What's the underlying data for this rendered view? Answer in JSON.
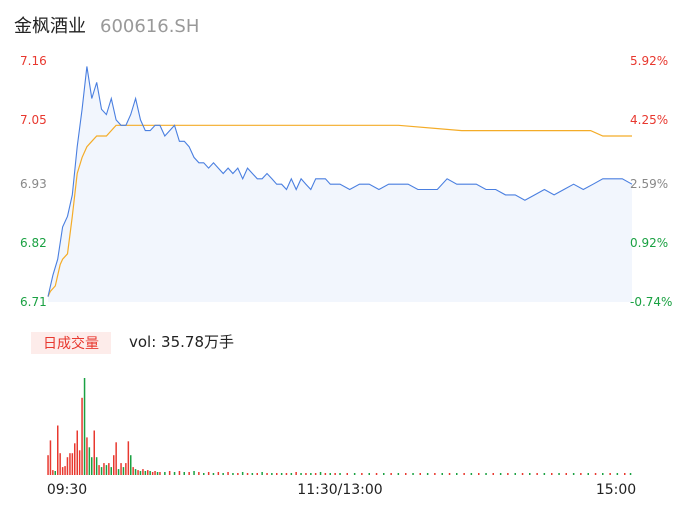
{
  "header": {
    "name": "金枫酒业",
    "code": "600616.SH"
  },
  "volume": {
    "badge": "日成交量",
    "label": "vol: 35.78万手"
  },
  "colors": {
    "price": "#4a7fe0",
    "avg": "#f4ac28",
    "up": "#e8382f",
    "down": "#1aa142",
    "neutral": "#888888"
  },
  "chart_data": [
    {
      "type": "line",
      "title": "",
      "ylim": [
        6.71,
        7.16
      ],
      "y_ticks_left": [
        {
          "label": "7.16",
          "value": 7.16,
          "color": "#e8382f"
        },
        {
          "label": "7.05",
          "value": 7.05,
          "color": "#e8382f"
        },
        {
          "label": "6.93",
          "value": 6.93,
          "color": "#888888"
        },
        {
          "label": "6.82",
          "value": 6.82,
          "color": "#1aa142"
        },
        {
          "label": "6.71",
          "value": 6.71,
          "color": "#1aa142"
        }
      ],
      "y_ticks_right": [
        {
          "label": "5.92%",
          "value": 7.16,
          "color": "#e8382f"
        },
        {
          "label": "4.25%",
          "value": 7.05,
          "color": "#e8382f"
        },
        {
          "label": "2.59%",
          "value": 6.93,
          "color": "#888888"
        },
        {
          "label": "0.92%",
          "value": 6.82,
          "color": "#1aa142"
        },
        {
          "label": "-0.74%",
          "value": 6.71,
          "color": "#1aa142"
        }
      ],
      "x_ticks": [
        "09:30",
        "11:30/13:00",
        "15:00"
      ],
      "series": [
        {
          "key": "price",
          "x": [
            0,
            2,
            4,
            6,
            8,
            10,
            12,
            14,
            16,
            18,
            20,
            22,
            24,
            26,
            28,
            30,
            32,
            34,
            36,
            38,
            40,
            42,
            44,
            46,
            48,
            50,
            52,
            54,
            56,
            58,
            60,
            62,
            64,
            66,
            68,
            70,
            72,
            74,
            76,
            78,
            80,
            82,
            84,
            86,
            88,
            90,
            92,
            94,
            96,
            98,
            100,
            102,
            104,
            106,
            108,
            110,
            112,
            114,
            116,
            118,
            120,
            124,
            128,
            132,
            136,
            140,
            144,
            148,
            152,
            156,
            160,
            164,
            168,
            172,
            176,
            180,
            184,
            188,
            192,
            196,
            200,
            204,
            208,
            212,
            216,
            220,
            224,
            228,
            232,
            236,
            240
          ],
          "values": [
            6.72,
            6.76,
            6.79,
            6.85,
            6.87,
            6.91,
            7.0,
            7.07,
            7.15,
            7.09,
            7.12,
            7.07,
            7.06,
            7.09,
            7.05,
            7.04,
            7.04,
            7.06,
            7.09,
            7.05,
            7.03,
            7.03,
            7.04,
            7.04,
            7.02,
            7.03,
            7.04,
            7.01,
            7.01,
            7.0,
            6.98,
            6.97,
            6.97,
            6.96,
            6.97,
            6.96,
            6.95,
            6.96,
            6.95,
            6.96,
            6.94,
            6.96,
            6.95,
            6.94,
            6.94,
            6.95,
            6.94,
            6.93,
            6.93,
            6.92,
            6.94,
            6.92,
            6.94,
            6.93,
            6.92,
            6.94,
            6.94,
            6.94,
            6.93,
            6.93,
            6.93,
            6.92,
            6.93,
            6.93,
            6.92,
            6.93,
            6.93,
            6.93,
            6.92,
            6.92,
            6.92,
            6.94,
            6.93,
            6.93,
            6.93,
            6.92,
            6.92,
            6.91,
            6.91,
            6.9,
            6.91,
            6.92,
            6.91,
            6.92,
            6.93,
            6.92,
            6.93,
            6.94,
            6.94,
            6.94,
            6.93
          ]
        },
        {
          "key": "avg",
          "x": [
            0,
            1,
            3,
            5,
            6,
            8,
            10,
            12,
            14,
            16,
            18,
            20,
            22,
            24,
            26,
            28,
            30,
            32,
            36,
            40,
            44,
            46,
            52,
            60,
            80,
            100,
            120,
            144,
            170,
            200,
            223,
            228,
            240
          ],
          "values": [
            6.72,
            6.73,
            6.74,
            6.78,
            6.79,
            6.8,
            6.87,
            6.95,
            6.98,
            7.0,
            7.01,
            7.02,
            7.02,
            7.02,
            7.03,
            7.04,
            7.04,
            7.04,
            7.04,
            7.04,
            7.04,
            7.04,
            7.04,
            7.04,
            7.04,
            7.04,
            7.04,
            7.04,
            7.03,
            7.03,
            7.03,
            7.02,
            7.02
          ]
        }
      ]
    },
    {
      "type": "bar",
      "title": "",
      "x": [
        0,
        1,
        2,
        3,
        4,
        5,
        6,
        7,
        8,
        9,
        10,
        11,
        12,
        13,
        14,
        15,
        16,
        17,
        18,
        19,
        20,
        21,
        22,
        23,
        24,
        25,
        26,
        27,
        28,
        29,
        30,
        31,
        32,
        33,
        34,
        35,
        36,
        37,
        38,
        39,
        40,
        41,
        42,
        43,
        44,
        45,
        46,
        48,
        50,
        52,
        54,
        56,
        58,
        60,
        62,
        64,
        66,
        68,
        70,
        72,
        74,
        76,
        78,
        80,
        82,
        84,
        86,
        88,
        90,
        92,
        94,
        96,
        98,
        100,
        102,
        104,
        106,
        108,
        110,
        112,
        114,
        116,
        118,
        120,
        123,
        126,
        129,
        132,
        135,
        138,
        141,
        144,
        147,
        150,
        153,
        156,
        159,
        162,
        165,
        168,
        171,
        174,
        177,
        180,
        183,
        186,
        189,
        192,
        195,
        198,
        201,
        204,
        207,
        210,
        213,
        216,
        219,
        222,
        225,
        228,
        231,
        234,
        237,
        240
      ],
      "values": [
        20,
        35,
        5,
        4,
        50,
        22,
        8,
        9,
        18,
        22,
        22,
        32,
        45,
        25,
        78,
        98,
        38,
        28,
        18,
        45,
        18,
        10,
        8,
        12,
        10,
        12,
        8,
        20,
        33,
        6,
        12,
        8,
        12,
        34,
        20,
        8,
        6,
        5,
        4,
        6,
        4,
        5,
        4,
        3,
        4,
        3,
        3,
        3,
        4,
        3,
        4,
        3,
        3,
        4,
        3,
        2,
        3,
        2,
        3,
        2,
        3,
        2,
        2,
        3,
        2,
        2,
        2,
        3,
        2,
        2,
        2,
        2,
        2,
        2,
        3,
        2,
        2,
        2,
        2,
        3,
        2,
        2,
        2,
        2,
        2,
        2,
        2,
        2,
        2,
        2,
        2,
        2,
        2,
        2,
        2,
        2,
        2,
        2,
        2,
        2,
        2,
        2,
        2,
        2,
        2,
        2,
        2,
        2,
        2,
        2,
        2,
        2,
        2,
        2,
        2,
        2,
        2,
        2,
        2,
        2,
        2,
        2,
        2,
        2
      ],
      "colors": [
        "up",
        "up",
        "up",
        "down",
        "up",
        "up",
        "up",
        "up",
        "up",
        "up",
        "up",
        "up",
        "up",
        "up",
        "up",
        "down",
        "up",
        "down",
        "down",
        "up",
        "down",
        "up",
        "down",
        "up",
        "down",
        "up",
        "down",
        "up",
        "up",
        "down",
        "up",
        "down",
        "up",
        "up",
        "down",
        "up",
        "down",
        "up",
        "down",
        "up",
        "down",
        "up",
        "down",
        "up",
        "up",
        "down",
        "up",
        "down",
        "up",
        "down",
        "up",
        "down",
        "up",
        "down",
        "up",
        "down",
        "up",
        "down",
        "up",
        "down",
        "up",
        "down",
        "up",
        "down",
        "up",
        "down",
        "up",
        "down",
        "up",
        "down",
        "up",
        "down",
        "up",
        "down",
        "up",
        "down",
        "up",
        "down",
        "up",
        "down",
        "up",
        "down",
        "up",
        "down",
        "up",
        "down",
        "up",
        "down",
        "up",
        "down",
        "up",
        "down",
        "up",
        "down",
        "up",
        "down",
        "up",
        "down",
        "up",
        "down",
        "up",
        "down",
        "up",
        "down",
        "up",
        "down",
        "up",
        "down",
        "up",
        "down",
        "up",
        "down",
        "up",
        "down",
        "up",
        "down",
        "up",
        "down",
        "up",
        "down",
        "up",
        "down",
        "up",
        "down"
      ]
    }
  ]
}
